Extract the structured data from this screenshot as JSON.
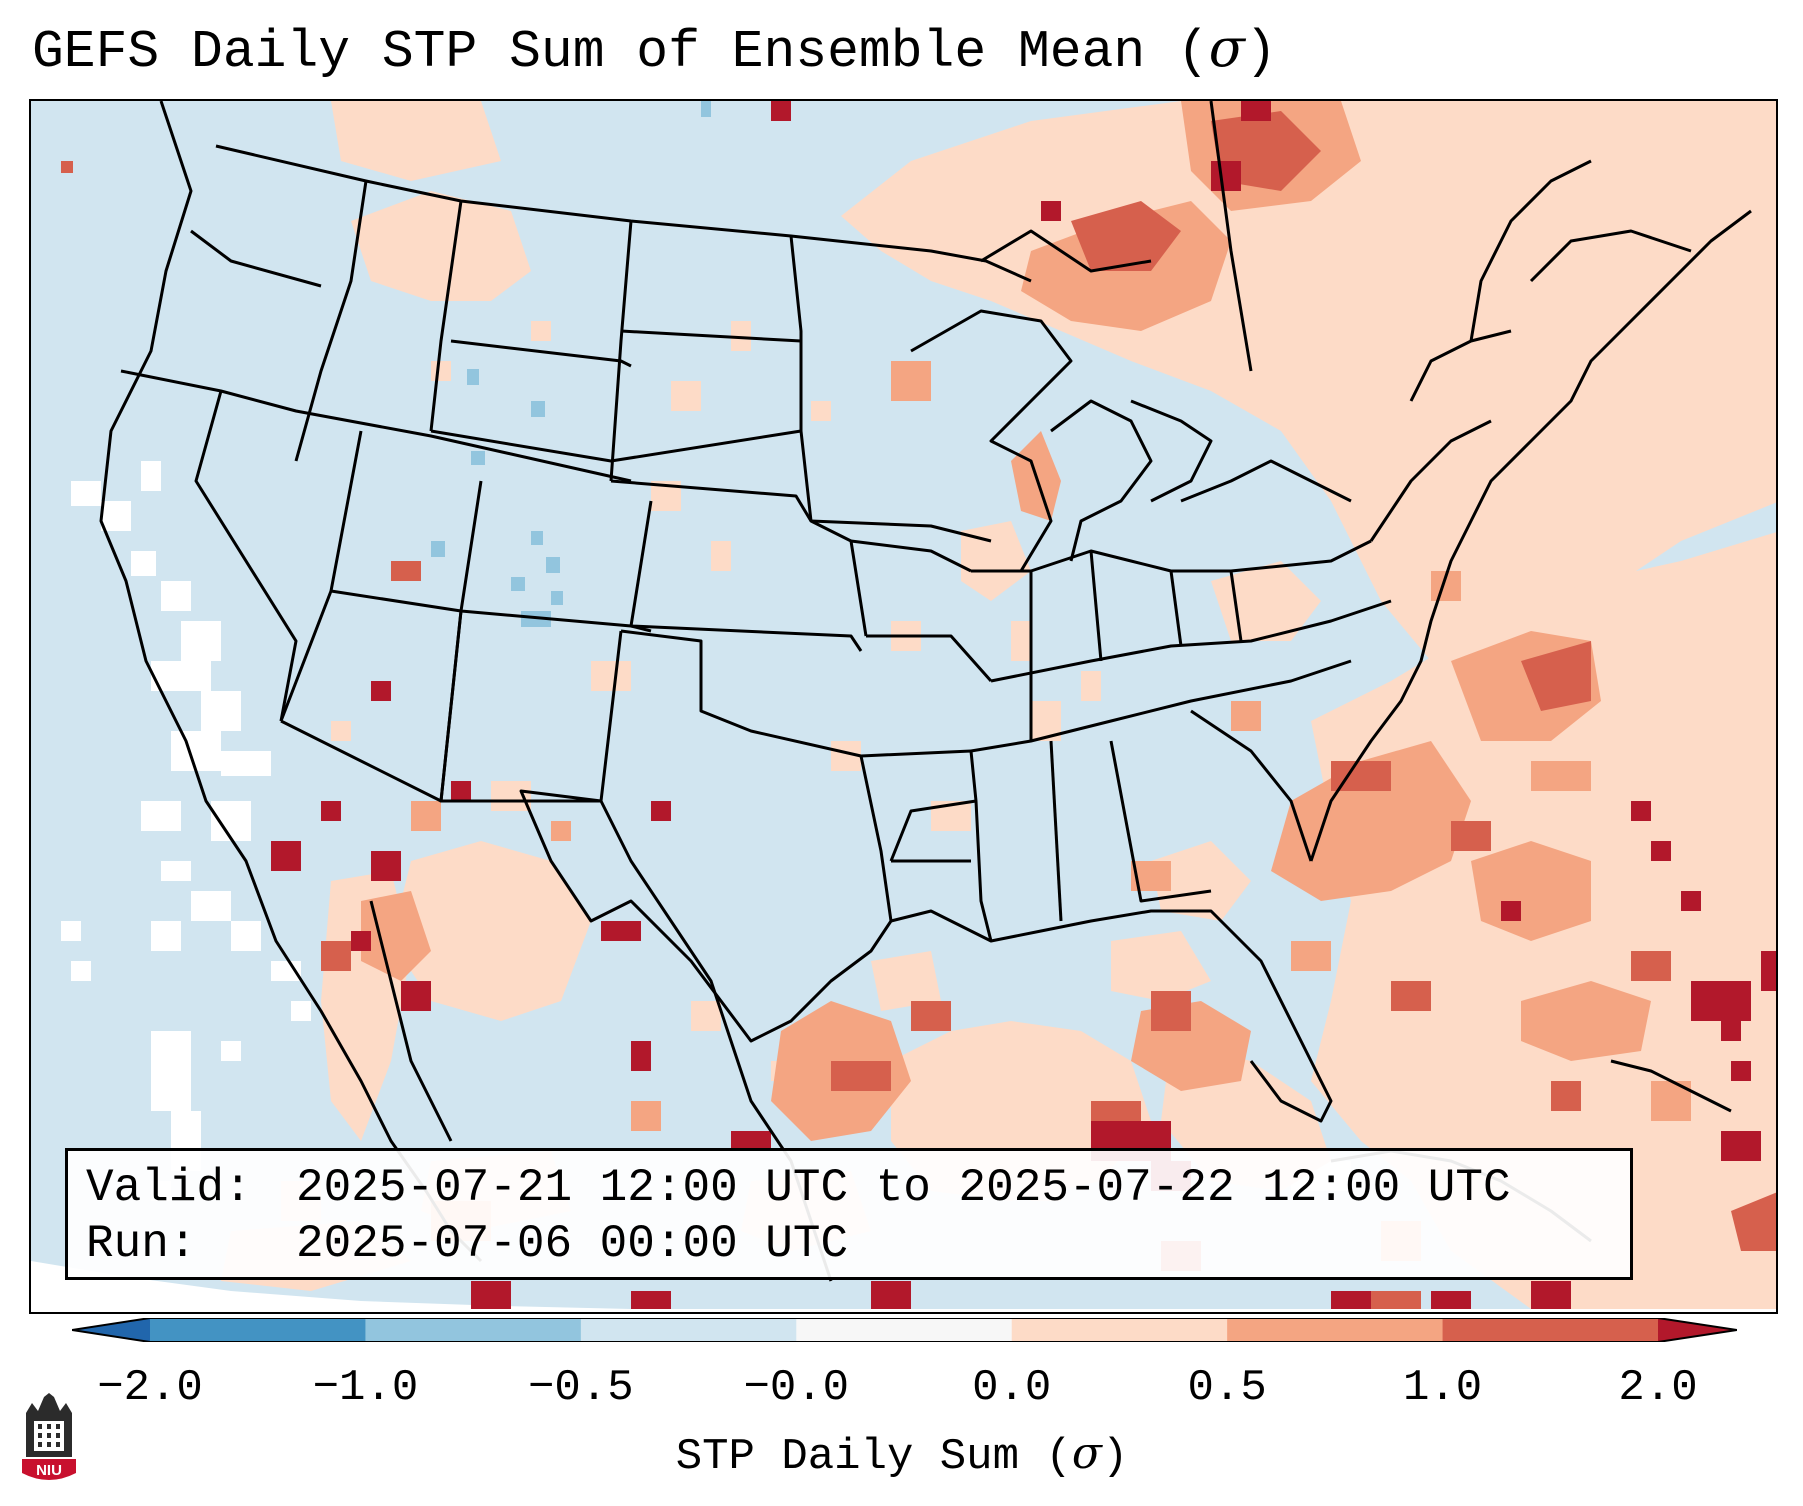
{
  "title": {
    "text": "GEFS Daily STP Sum of Ensemble Mean (",
    "symbol": "σ",
    "close": ")"
  },
  "info": {
    "valid_label": "Valid:",
    "valid_value": "2025-07-21 12:00 UTC to 2025-07-22 12:00 UTC",
    "run_label": "Run:",
    "run_value": "2025-07-06 00:00 UTC"
  },
  "colorbar": {
    "label_text": "STP Daily Sum (",
    "label_symbol": "σ",
    "label_close": ")",
    "tick_labels": [
      "−2.0",
      "−1.0",
      "−0.5",
      "−0.0",
      "0.0",
      "0.5",
      "1.0",
      "2.0"
    ],
    "bins": [
      {
        "from": "-2.0",
        "to": "-1.0",
        "color": "#4393c3"
      },
      {
        "from": "-1.0",
        "to": "-0.5",
        "color": "#92c5de"
      },
      {
        "from": "-0.5",
        "to": "-0.0",
        "color": "#d1e5f0"
      },
      {
        "from": "-0.0",
        "to": "0.0",
        "color": "#f7f7f7"
      },
      {
        "from": "0.0",
        "to": "0.5",
        "color": "#fddbc7"
      },
      {
        "from": "0.5",
        "to": "1.0",
        "color": "#f4a582"
      },
      {
        "from": "1.0",
        "to": "2.0",
        "color": "#d6604d"
      }
    ],
    "under_color": "#2166ac",
    "over_color": "#b2182b"
  },
  "map": {
    "background_color": "#d1e5f0",
    "neutral_color": "#ffffff",
    "border_color": "#000000"
  },
  "logo": {
    "text": "NIU",
    "color": "#c8102e"
  }
}
